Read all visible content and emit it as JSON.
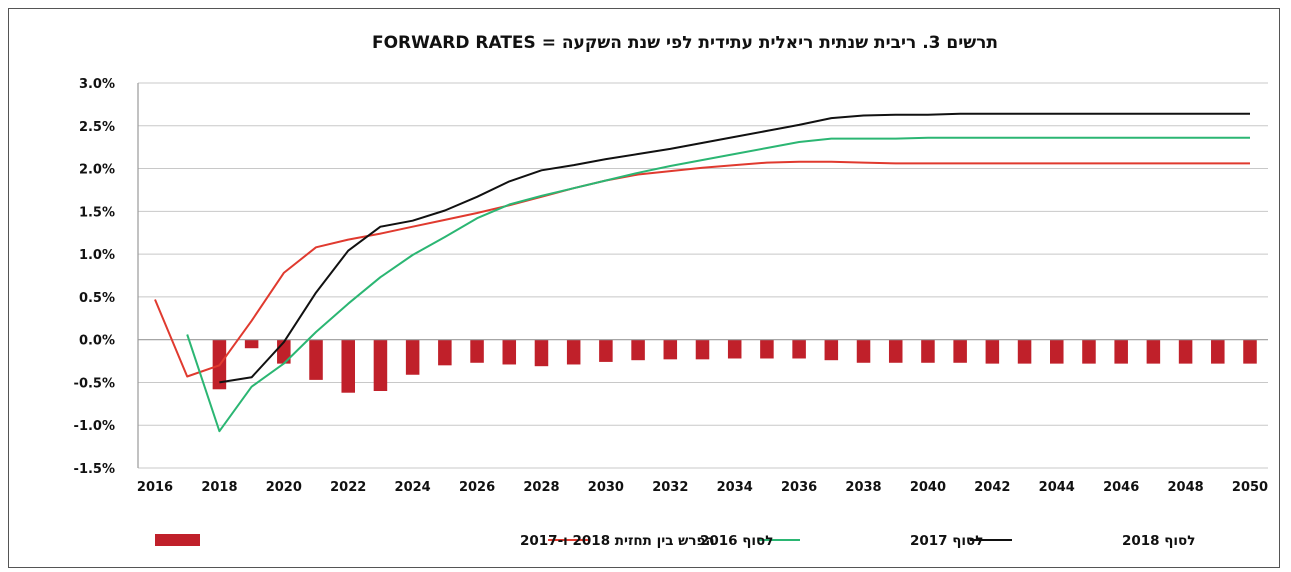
{
  "chart_data": {
    "type": "line",
    "title": "תרשים 3. ריבית שנתית ריאלית עתידית לפי שנת השקעה = FORWARD RATES",
    "xlabel": "",
    "ylabel": "",
    "ylim": [
      -1.5,
      3.0
    ],
    "xlim": [
      2016,
      2050
    ],
    "x_ticks": [
      2016,
      2018,
      2020,
      2022,
      2024,
      2026,
      2028,
      2030,
      2032,
      2034,
      2036,
      2038,
      2040,
      2042,
      2044,
      2046,
      2048,
      2050
    ],
    "y_ticks": [
      -1.5,
      -1.0,
      -0.5,
      0.0,
      0.5,
      1.0,
      1.5,
      2.0,
      2.5,
      3.0
    ],
    "y_tick_labels": [
      "-1.5%",
      "-1.0%",
      "-0.5%",
      "0.0%",
      "0.5%",
      "1.0%",
      "1.5%",
      "2.0%",
      "2.5%",
      "3.0%"
    ],
    "grid": true,
    "legend_position": "bottom",
    "series": [
      {
        "name": "לסוף 2016",
        "kind": "line",
        "color": "#e03a2f",
        "x": [
          2016,
          2017,
          2018,
          2019,
          2020,
          2021,
          2022,
          2023,
          2024,
          2025,
          2026,
          2027,
          2028,
          2029,
          2030,
          2031,
          2032,
          2033,
          2034,
          2035,
          2036,
          2037,
          2038,
          2039,
          2040,
          2045,
          2050
        ],
        "values": [
          0.47,
          -0.43,
          -0.3,
          0.22,
          0.78,
          1.08,
          1.17,
          1.24,
          1.32,
          1.4,
          1.48,
          1.57,
          1.67,
          1.77,
          1.86,
          1.93,
          1.97,
          2.01,
          2.04,
          2.07,
          2.08,
          2.08,
          2.07,
          2.06,
          2.06,
          2.06,
          2.06
        ]
      },
      {
        "name": "לסוף 2017",
        "kind": "line",
        "color": "#2bb673",
        "x": [
          2017,
          2018,
          2019,
          2020,
          2021,
          2022,
          2023,
          2024,
          2025,
          2026,
          2027,
          2028,
          2029,
          2030,
          2031,
          2032,
          2033,
          2034,
          2035,
          2036,
          2037,
          2038,
          2039,
          2040,
          2045,
          2050
        ],
        "values": [
          0.06,
          -1.07,
          -0.55,
          -0.28,
          0.09,
          0.42,
          0.73,
          0.99,
          1.2,
          1.42,
          1.58,
          1.68,
          1.77,
          1.86,
          1.95,
          2.03,
          2.1,
          2.17,
          2.24,
          2.31,
          2.35,
          2.35,
          2.35,
          2.36,
          2.36,
          2.36
        ]
      },
      {
        "name": "לסוף 2018",
        "kind": "line",
        "color": "#111111",
        "x": [
          2018,
          2019,
          2020,
          2021,
          2022,
          2023,
          2024,
          2025,
          2026,
          2027,
          2028,
          2029,
          2030,
          2031,
          2032,
          2033,
          2034,
          2035,
          2036,
          2037,
          2038,
          2039,
          2040,
          2041,
          2045,
          2050
        ],
        "values": [
          -0.5,
          -0.44,
          -0.03,
          0.55,
          1.04,
          1.32,
          1.39,
          1.51,
          1.67,
          1.85,
          1.98,
          2.04,
          2.11,
          2.17,
          2.23,
          2.3,
          2.37,
          2.44,
          2.51,
          2.59,
          2.62,
          2.63,
          2.63,
          2.64,
          2.64,
          2.64
        ]
      },
      {
        "name": "הפרש בין תחזית 2018 ו-2017",
        "kind": "bar",
        "color": "#c0202a",
        "x": [
          2018,
          2019,
          2020,
          2021,
          2022,
          2023,
          2024,
          2025,
          2026,
          2027,
          2028,
          2029,
          2030,
          2031,
          2032,
          2033,
          2034,
          2035,
          2036,
          2037,
          2038,
          2039,
          2040,
          2041,
          2042,
          2043,
          2044,
          2045,
          2046,
          2047,
          2048,
          2049,
          2050
        ],
        "values": [
          -0.58,
          -0.1,
          -0.28,
          -0.47,
          -0.62,
          -0.6,
          -0.41,
          -0.3,
          -0.27,
          -0.29,
          -0.31,
          -0.29,
          -0.26,
          -0.24,
          -0.23,
          -0.23,
          -0.22,
          -0.22,
          -0.22,
          -0.24,
          -0.27,
          -0.27,
          -0.27,
          -0.27,
          -0.28,
          -0.28,
          -0.28,
          -0.28,
          -0.28,
          -0.28,
          -0.28,
          -0.28,
          -0.28
        ]
      }
    ]
  },
  "legend": [
    {
      "label": "לסוף 2018",
      "kind": "line",
      "color": "#111111"
    },
    {
      "label": "לסוף 2017",
      "kind": "line",
      "color": "#2bb673"
    },
    {
      "label": "לסוף 2016",
      "kind": "line",
      "color": "#e03a2f"
    },
    {
      "label": "הפרש בין תחזית 2018 ו-2017",
      "kind": "bar",
      "color": "#c0202a"
    }
  ]
}
